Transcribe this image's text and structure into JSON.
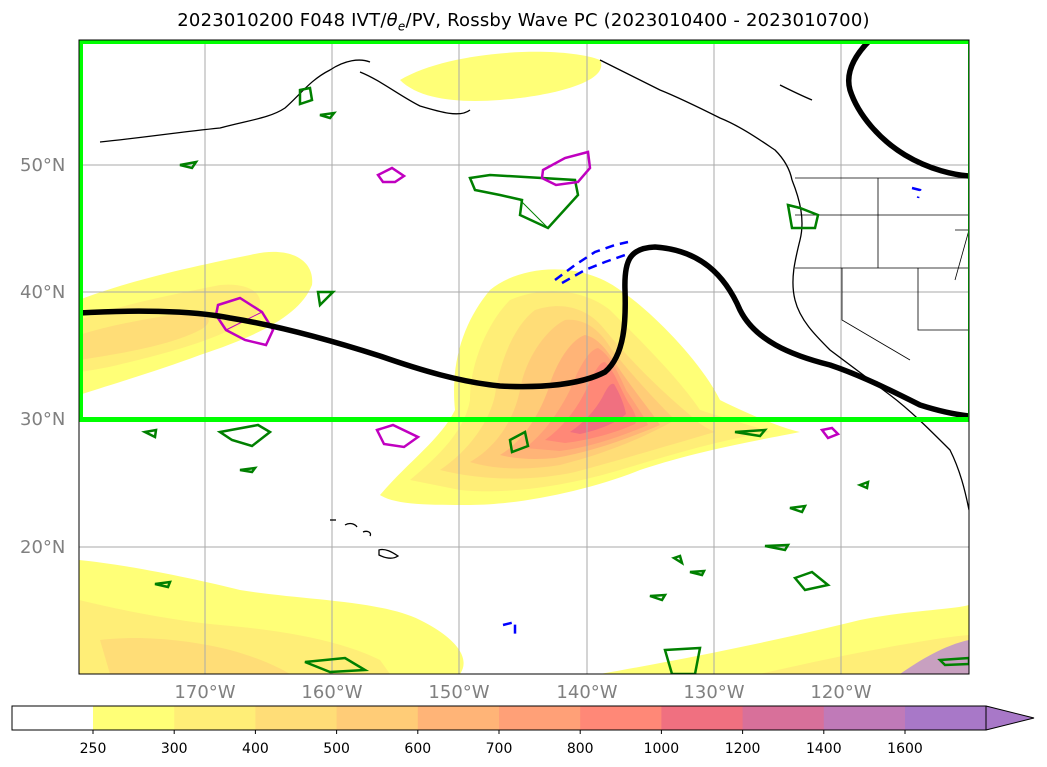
{
  "title": {
    "prefix": "2023010200 F048 IVT/",
    "theta": "θ",
    "theta_sub": "e",
    "suffix": "/PV, Rossby Wave PC (2023010400 - 2023010700)"
  },
  "lat_labels": [
    "50°N",
    "40°N",
    "30°N",
    "20°N"
  ],
  "lon_labels": [
    "170°W",
    "160°W",
    "150°W",
    "140°W",
    "130°W",
    "120°W"
  ],
  "colorbar": {
    "ticks": [
      "250",
      "300",
      "400",
      "500",
      "600",
      "700",
      "800",
      "1000",
      "1200",
      "1400",
      "1600"
    ],
    "colors": [
      "#ffff77",
      "#ffee77",
      "#ffdd77",
      "#ffcc77",
      "#ffb477",
      "#ffa077",
      "#ff8877",
      "#f07080",
      "#d8709a",
      "#c07ab8",
      "#a878c8"
    ]
  },
  "legend_semantics": {
    "fill": "IVT",
    "black_line": "Rossby wave contour",
    "green_box": "PC domain",
    "green_contours": "theta-e",
    "magenta_contours": "PV",
    "blue_dashed": "negative anomaly"
  }
}
